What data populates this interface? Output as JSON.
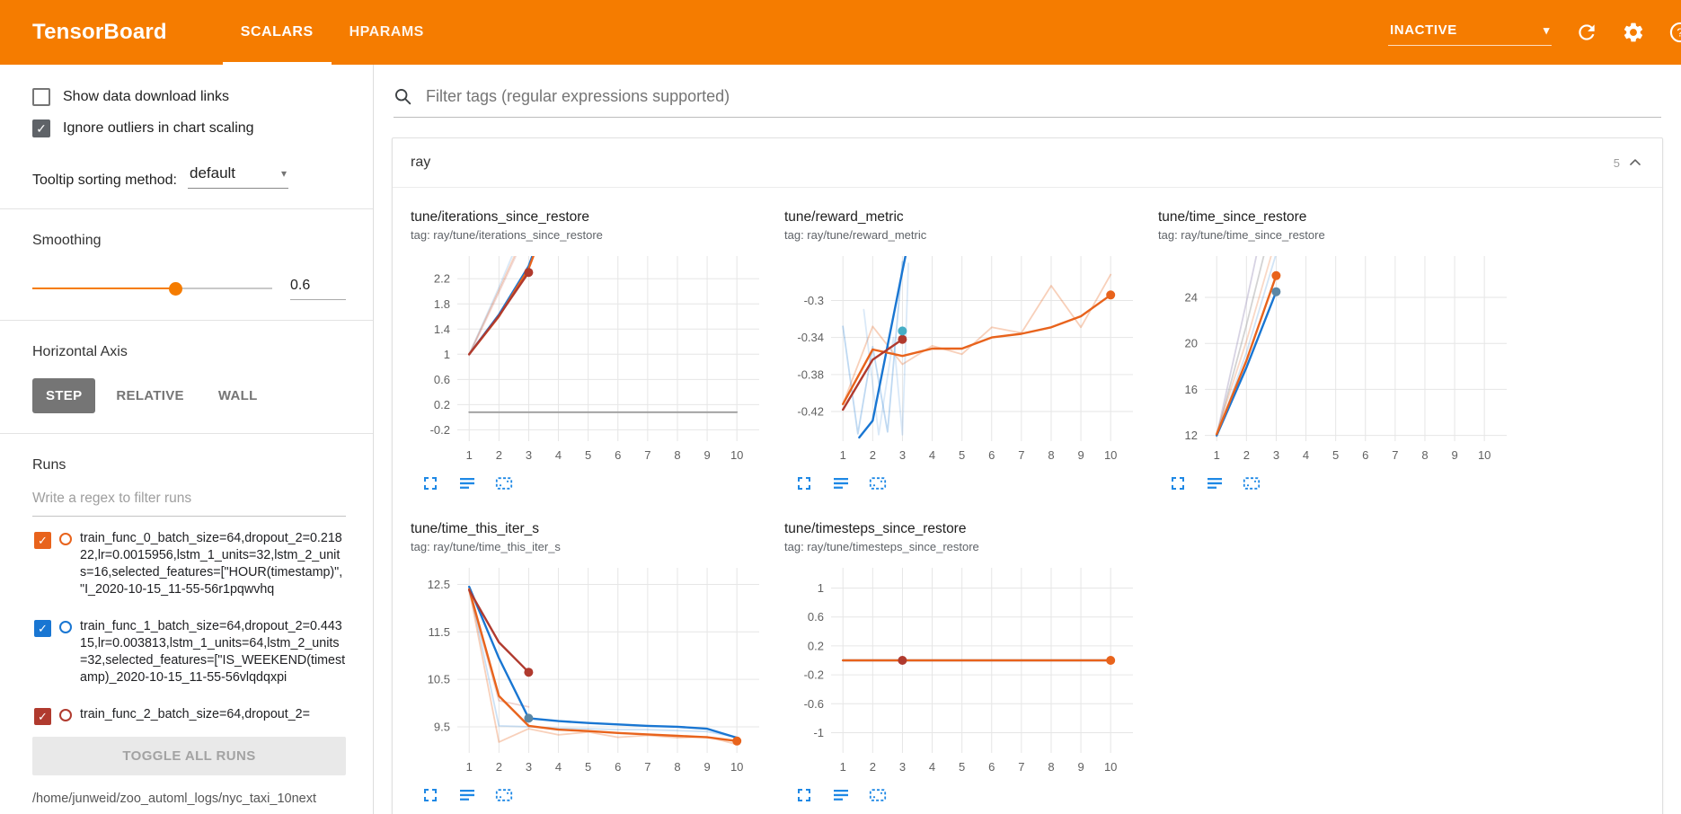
{
  "header": {
    "logo": "TensorBoard",
    "tabs": [
      {
        "label": "SCALARS",
        "active": true
      },
      {
        "label": "HPARAMS",
        "active": false
      }
    ],
    "status": "INACTIVE"
  },
  "sidebar": {
    "checkboxes": [
      {
        "label": "Show data download links",
        "checked": false
      },
      {
        "label": "Ignore outliers in chart scaling",
        "checked": true
      }
    ],
    "tooltip_sorting": {
      "label": "Tooltip sorting method:",
      "value": "default"
    },
    "smoothing": {
      "label": "Smoothing",
      "value": "0.6",
      "percent": 60
    },
    "horizontal_axis": {
      "label": "Horizontal Axis",
      "options": [
        "STEP",
        "RELATIVE",
        "WALL"
      ],
      "selected": "STEP"
    },
    "runs": {
      "label": "Runs",
      "filter_placeholder": "Write a regex to filter runs",
      "items": [
        {
          "label": "train_func_0_batch_size=64,dropout_2=0.21822,lr=0.0015956,lstm_1_units=32,lstm_2_units=16,selected_features=[\"HOUR(timestamp)\", \"I_2020-10-15_11-55-56r1pqwvhq",
          "checked": true,
          "color": "#e8631c"
        },
        {
          "label": "train_func_1_batch_size=64,dropout_2=0.44315,lr=0.003813,lstm_1_units=64,lstm_2_units=32,selected_features=[\"IS_WEEKEND(timestamp)_2020-10-15_11-55-56vlqdqxpi",
          "checked": true,
          "color": "#1976d2"
        },
        {
          "label": "train_func_2_batch_size=64,dropout_2=",
          "checked": true,
          "color": "#b03a2e"
        }
      ],
      "toggle_all_label": "TOGGLE ALL RUNS",
      "log_path": "/home/junweid/zoo_automl_logs/nyc_taxi_10next"
    }
  },
  "main": {
    "filter_placeholder": "Filter tags (regular expressions supported)",
    "section": {
      "title": "ray",
      "count": "5"
    }
  },
  "colors": {
    "header_bg": "#f57c00",
    "accent": "#f57c00",
    "chart_icon_blue": "#1e88e5",
    "run_orange": "#e8631c",
    "run_blue": "#1976d2",
    "run_red": "#b03a2e",
    "constant_run_gray": "#9e9e9e"
  },
  "chart_data": [
    {
      "type": "line",
      "title": "tune/iterations_since_restore",
      "tag": "tag: ray/tune/iterations_since_restore",
      "xlim": [
        0.6,
        10.75
      ],
      "ylim": [
        -0.38,
        2.56
      ],
      "xticks": [
        1,
        2,
        3,
        4,
        5,
        6,
        7,
        8,
        9,
        10
      ],
      "yticks": [
        -0.2,
        0.2,
        0.6,
        1,
        1.4,
        1.8,
        2.2
      ],
      "series": [
        {
          "name": "train_func_0-raw",
          "color": "#e8631c",
          "opacity": 0.25,
          "width": 1.8,
          "values": [
            [
              1,
              1
            ],
            [
              2,
              2.02
            ],
            [
              2.8,
              2.85
            ]
          ]
        },
        {
          "name": "train_func_1-raw",
          "color": "#1976d2",
          "opacity": 0.16,
          "width": 1.8,
          "values": [
            [
              1,
              1
            ],
            [
              2,
              2.06
            ],
            [
              2.7,
              2.85
            ]
          ]
        },
        {
          "name": "train_func_2-raw",
          "color": "#b03a2e",
          "opacity": 0.18,
          "width": 1.8,
          "values": [
            [
              1,
              0.98
            ],
            [
              2,
              1.98
            ],
            [
              2.85,
              2.85
            ]
          ]
        },
        {
          "name": "constant-run",
          "color": "#9e9e9e",
          "opacity": 1,
          "width": 1.8,
          "values": [
            [
              1,
              0.08
            ],
            [
              10,
              0.08
            ]
          ]
        },
        {
          "name": "train_func_1",
          "color": "#1976d2",
          "opacity": 1,
          "width": 2.4,
          "values": [
            [
              1,
              1
            ],
            [
              2,
              1.63
            ],
            [
              3,
              2.4
            ],
            [
              3.35,
              2.85
            ]
          ]
        },
        {
          "name": "train_func_0",
          "color": "#e8631c",
          "opacity": 1,
          "width": 2.4,
          "values": [
            [
              1,
              1
            ],
            [
              2,
              1.6
            ],
            [
              3,
              2.36
            ],
            [
              3.35,
              2.8
            ]
          ]
        },
        {
          "name": "train_func_2",
          "color": "#b03a2e",
          "opacity": 1,
          "width": 2.4,
          "values": [
            [
              1,
              1
            ],
            [
              2,
              1.61
            ],
            [
              3,
              2.3
            ]
          ],
          "dot": true
        }
      ]
    },
    {
      "type": "line",
      "title": "tune/reward_metric",
      "tag": "tag: ray/tune/reward_metric",
      "xlim": [
        0.6,
        10.75
      ],
      "ylim": [
        -0.452,
        -0.252
      ],
      "xticks": [
        1,
        2,
        3,
        4,
        5,
        6,
        7,
        8,
        9,
        10
      ],
      "yticks": [
        -0.42,
        -0.38,
        -0.34,
        -0.3
      ],
      "series": [
        {
          "name": "train_func_0-raw",
          "color": "#e8631c",
          "opacity": 0.3,
          "width": 1.8,
          "values": [
            [
              1,
              -0.412
            ],
            [
              2,
              -0.328
            ],
            [
              3,
              -0.369
            ],
            [
              4,
              -0.349
            ],
            [
              5,
              -0.358
            ],
            [
              6,
              -0.329
            ],
            [
              7,
              -0.335
            ],
            [
              8,
              -0.284
            ],
            [
              9,
              -0.329
            ],
            [
              10,
              -0.272
            ]
          ]
        },
        {
          "name": "train_func_1-raw",
          "color": "#1976d2",
          "opacity": 0.28,
          "width": 1.8,
          "values": [
            [
              1,
              -0.328
            ],
            [
              1.5,
              -0.444
            ],
            [
              2,
              -0.35
            ],
            [
              2.5,
              -0.442
            ],
            [
              3,
              -0.258
            ]
          ]
        },
        {
          "name": "train_func_1-raw2",
          "color": "#1976d2",
          "opacity": 0.16,
          "width": 1.8,
          "values": [
            [
              1.7,
              -0.31
            ],
            [
              2.2,
              -0.445
            ],
            [
              2.7,
              -0.34
            ],
            [
              3,
              -0.445
            ],
            [
              3.2,
              -0.26
            ]
          ]
        },
        {
          "name": "train_func_1",
          "color": "#1976d2",
          "opacity": 1,
          "width": 2.4,
          "values": [
            [
              1.55,
              -0.448
            ],
            [
              2,
              -0.43
            ],
            [
              3,
              -0.268
            ],
            [
              3.1,
              -0.252
            ]
          ]
        },
        {
          "name": "train_func_0",
          "color": "#e8631c",
          "opacity": 1,
          "width": 2.4,
          "values": [
            [
              1,
              -0.412
            ],
            [
              2,
              -0.353
            ],
            [
              3,
              -0.36
            ],
            [
              4,
              -0.352
            ],
            [
              5,
              -0.352
            ],
            [
              6,
              -0.34
            ],
            [
              7,
              -0.336
            ],
            [
              8,
              -0.329
            ],
            [
              9,
              -0.317
            ],
            [
              10,
              -0.294
            ]
          ],
          "dot": true
        },
        {
          "name": "train_func_2",
          "color": "#b03a2e",
          "opacity": 1,
          "width": 2.4,
          "values": [
            [
              1,
              -0.418
            ],
            [
              2,
              -0.364
            ],
            [
              3,
              -0.342
            ]
          ],
          "dot": true
        },
        {
          "name": "train_func_1-end",
          "color": "#45aec6",
          "opacity": 1,
          "width": 2,
          "values": [
            [
              3,
              -0.333
            ]
          ],
          "dot": true
        }
      ]
    },
    {
      "type": "line",
      "title": "tune/time_since_restore",
      "tag": "tag: ray/tune/time_since_restore",
      "xlim": [
        0.6,
        10.75
      ],
      "ylim": [
        11.5,
        27.6
      ],
      "xticks": [
        1,
        2,
        3,
        4,
        5,
        6,
        7,
        8,
        9,
        10
      ],
      "yticks": [
        12,
        16,
        20,
        24
      ],
      "series": [
        {
          "name": "raw-lavender",
          "color": "#b0a7c7",
          "opacity": 0.5,
          "width": 1.8,
          "values": [
            [
              1,
              12
            ],
            [
              2,
              23.6
            ],
            [
              2.35,
              27.8
            ]
          ]
        },
        {
          "name": "raw-gray",
          "color": "#9e9e9e",
          "opacity": 0.45,
          "width": 1.8,
          "values": [
            [
              1,
              12
            ],
            [
              2,
              21.6
            ],
            [
              2.6,
              27.8
            ]
          ]
        },
        {
          "name": "train_func_0-raw",
          "color": "#e8631c",
          "opacity": 0.25,
          "width": 1.8,
          "values": [
            [
              1,
              12.2
            ],
            [
              2,
              20.2
            ],
            [
              2.85,
              27.8
            ]
          ]
        },
        {
          "name": "train_func_1-raw",
          "color": "#1976d2",
          "opacity": 0.2,
          "width": 1.8,
          "values": [
            [
              1,
              11.9
            ],
            [
              2,
              19.2
            ],
            [
              3,
              27.8
            ]
          ]
        },
        {
          "name": "train_func_1",
          "color": "#1976d2",
          "opacity": 1,
          "width": 2.4,
          "values": [
            [
              1,
              12
            ],
            [
              2,
              17.9
            ],
            [
              3,
              24.5
            ]
          ]
        },
        {
          "name": "train_func_0",
          "color": "#e8631c",
          "opacity": 1,
          "width": 2.4,
          "values": [
            [
              1,
              12.1
            ],
            [
              2,
              18.5
            ],
            [
              3,
              25.9
            ]
          ],
          "dot": true
        },
        {
          "name": "train_func_1-end",
          "color": "#5b87a5",
          "opacity": 1,
          "width": 2,
          "values": [
            [
              3,
              24.5
            ]
          ],
          "dot": true
        }
      ]
    },
    {
      "type": "line",
      "title": "tune/time_this_iter_s",
      "tag": "tag: ray/tune/time_this_iter_s",
      "xlim": [
        0.6,
        10.75
      ],
      "ylim": [
        8.95,
        12.85
      ],
      "xticks": [
        1,
        2,
        3,
        4,
        5,
        6,
        7,
        8,
        9,
        10
      ],
      "yticks": [
        9.5,
        10.5,
        11.5,
        12.5
      ],
      "series": [
        {
          "name": "train_func_1-raw",
          "color": "#1976d2",
          "opacity": 0.22,
          "width": 1.8,
          "values": [
            [
              1,
              12.45
            ],
            [
              2,
              9.52
            ],
            [
              3,
              9.5
            ],
            [
              4,
              9.47
            ],
            [
              5,
              9.46
            ],
            [
              6,
              9.44
            ],
            [
              7,
              9.44
            ],
            [
              8,
              9.42
            ],
            [
              9,
              9.4
            ],
            [
              10,
              9.28
            ]
          ]
        },
        {
          "name": "train_func_0-raw",
          "color": "#e8631c",
          "opacity": 0.3,
          "width": 1.8,
          "values": [
            [
              1,
              12.4
            ],
            [
              2,
              9.18
            ],
            [
              3,
              9.46
            ],
            [
              4,
              9.33
            ],
            [
              5,
              9.39
            ],
            [
              6,
              9.28
            ],
            [
              7,
              9.32
            ],
            [
              8,
              9.27
            ],
            [
              9,
              9.29
            ],
            [
              10,
              9.13
            ]
          ]
        },
        {
          "name": "train_func_2-raw",
          "color": "#b03a2e",
          "opacity": 0.22,
          "width": 1.8,
          "values": [
            [
              1,
              12.35
            ],
            [
              2,
              10.05
            ],
            [
              3,
              9.92
            ]
          ]
        },
        {
          "name": "train_func_1",
          "color": "#1976d2",
          "opacity": 1,
          "width": 2.4,
          "values": [
            [
              1,
              12.45
            ],
            [
              2,
              10.95
            ],
            [
              3,
              9.68
            ],
            [
              4,
              9.62
            ],
            [
              5,
              9.58
            ],
            [
              6,
              9.55
            ],
            [
              7,
              9.52
            ],
            [
              8,
              9.5
            ],
            [
              9,
              9.46
            ],
            [
              10,
              9.27
            ]
          ]
        },
        {
          "name": "train_func_0",
          "color": "#e8631c",
          "opacity": 1,
          "width": 2.4,
          "values": [
            [
              1,
              12.4
            ],
            [
              2,
              10.15
            ],
            [
              3,
              9.52
            ],
            [
              4,
              9.44
            ],
            [
              5,
              9.41
            ],
            [
              6,
              9.37
            ],
            [
              7,
              9.34
            ],
            [
              8,
              9.31
            ],
            [
              9,
              9.28
            ],
            [
              10,
              9.2
            ]
          ],
          "dot": true
        },
        {
          "name": "train_func_2",
          "color": "#b03a2e",
          "opacity": 1,
          "width": 2.4,
          "values": [
            [
              1,
              12.38
            ],
            [
              2,
              11.28
            ],
            [
              3,
              10.65
            ]
          ],
          "dot": true
        },
        {
          "name": "train_func_1-end",
          "color": "#5b87a5",
          "opacity": 1,
          "width": 2,
          "values": [
            [
              3,
              9.68
            ]
          ],
          "dot": true
        }
      ]
    },
    {
      "type": "line",
      "title": "tune/timesteps_since_restore",
      "tag": "tag: ray/tune/timesteps_since_restore",
      "xlim": [
        0.6,
        10.75
      ],
      "ylim": [
        -1.28,
        1.28
      ],
      "xticks": [
        1,
        2,
        3,
        4,
        5,
        6,
        7,
        8,
        9,
        10
      ],
      "yticks": [
        -1,
        -0.6,
        -0.2,
        0.2,
        0.6,
        1
      ],
      "series": [
        {
          "name": "constant-run",
          "color": "#9e9e9e",
          "opacity": 1,
          "width": 1.8,
          "values": [
            [
              1,
              0
            ],
            [
              10,
              0
            ]
          ]
        },
        {
          "name": "train_func_1",
          "color": "#1976d2",
          "opacity": 1,
          "width": 2.2,
          "values": [
            [
              1,
              0
            ],
            [
              10,
              0
            ]
          ]
        },
        {
          "name": "train_func_0",
          "color": "#e8631c",
          "opacity": 1,
          "width": 2.4,
          "values": [
            [
              1,
              0
            ],
            [
              10,
              0
            ]
          ],
          "dot": true
        },
        {
          "name": "train_func_2",
          "color": "#b03a2e",
          "opacity": 1,
          "width": 2.2,
          "values": [
            [
              3,
              0
            ]
          ],
          "dot": true
        }
      ]
    }
  ]
}
